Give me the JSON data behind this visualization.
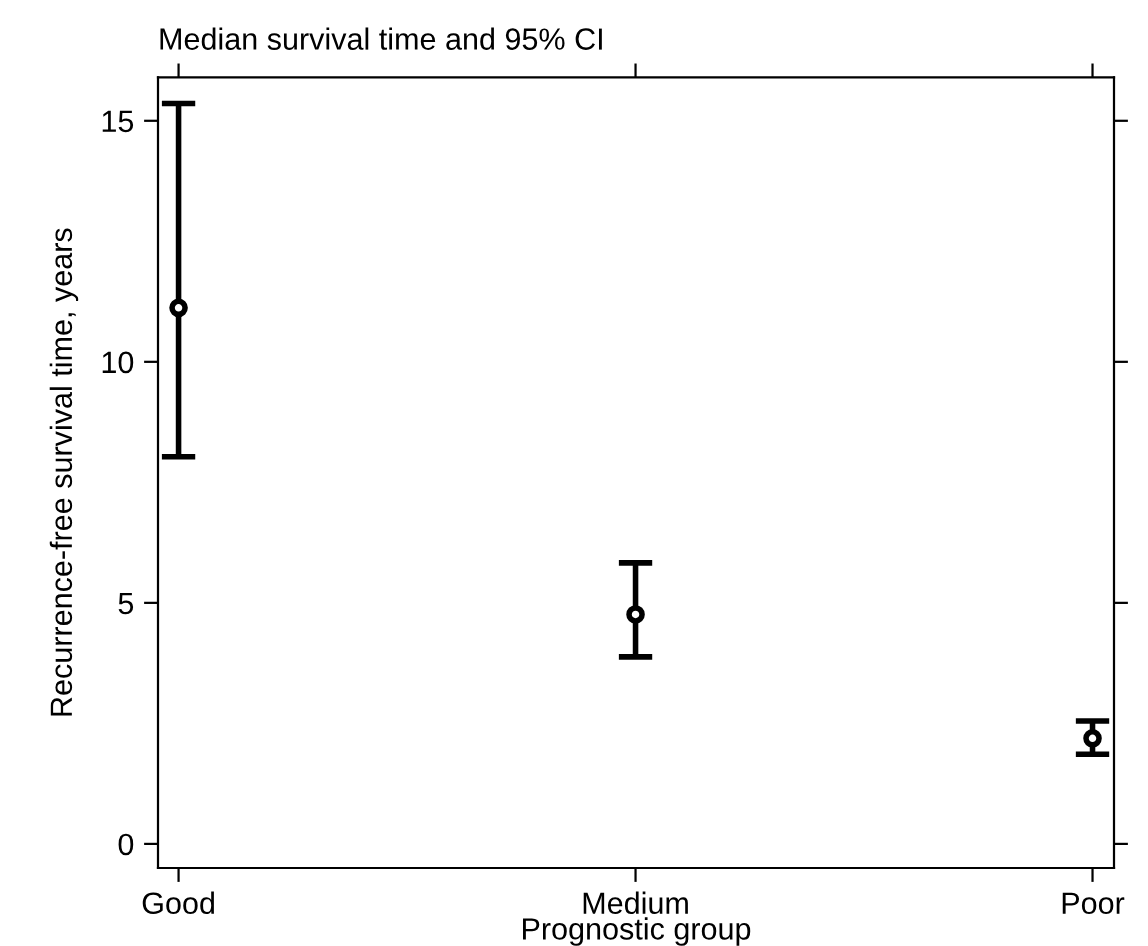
{
  "chart_data": {
    "type": "scatter",
    "title": "Median survival time and 95% CI",
    "xlabel": "Prognostic group",
    "ylabel": "Recurrence-free survival time, years",
    "categories": [
      "Good",
      "Medium",
      "Poor"
    ],
    "values": [
      11.12,
      4.76,
      2.19
    ],
    "errors": [
      [
        8.03,
        15.36
      ],
      [
        3.88,
        5.83
      ],
      [
        1.86,
        2.55
      ]
    ],
    "color": "#000000",
    "marker": "circle",
    "ylim": [
      -0.5,
      15.9
    ],
    "yticks": [
      0,
      5,
      10,
      15
    ],
    "grid": false,
    "legend": false
  }
}
